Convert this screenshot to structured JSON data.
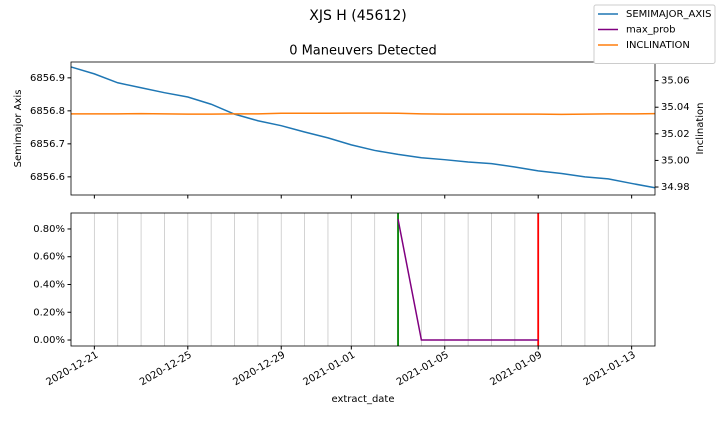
{
  "title": "XJS H (45612)",
  "chart_data": [
    {
      "type": "line",
      "title": "0 Maneuvers Detected",
      "ylabel": "Semimajor Axis",
      "y2label": "Inclination",
      "x": [
        "2020-12-20",
        "2020-12-21",
        "2020-12-22",
        "2020-12-23",
        "2020-12-24",
        "2020-12-25",
        "2020-12-26",
        "2020-12-27",
        "2020-12-28",
        "2020-12-29",
        "2020-12-30",
        "2020-12-31",
        "2021-01-01",
        "2021-01-02",
        "2021-01-03",
        "2021-01-04",
        "2021-01-05",
        "2021-01-06",
        "2021-01-07",
        "2021-01-08",
        "2021-01-09",
        "2021-01-10",
        "2021-01-11",
        "2021-01-12",
        "2021-01-13",
        "2021-01-14"
      ],
      "series": [
        {
          "name": "SEMIMAJOR_AXIS",
          "color": "#1f77b4",
          "values": [
            6856.933,
            6856.912,
            6856.885,
            6856.87,
            6856.855,
            6856.842,
            6856.82,
            6856.79,
            6856.77,
            6856.755,
            6856.736,
            6856.718,
            6856.697,
            6856.68,
            6856.668,
            6856.658,
            6856.652,
            6856.645,
            6856.64,
            6856.63,
            6856.618,
            6856.61,
            6856.6,
            6856.594,
            6856.58,
            6856.567
          ]
        },
        {
          "name": "INCLINATION",
          "color": "#ff7f0e",
          "axis": "y2",
          "values": [
            35.035,
            35.035,
            35.035,
            35.0352,
            35.035,
            35.0348,
            35.0348,
            35.035,
            35.035,
            35.0355,
            35.0355,
            35.0355,
            35.0356,
            35.0356,
            35.0355,
            35.035,
            35.0348,
            35.0348,
            35.0348,
            35.0348,
            35.0348,
            35.0346,
            35.0348,
            35.035,
            35.035,
            35.0352
          ]
        }
      ],
      "xlim": [
        "2020-12-20",
        "2021-01-14"
      ],
      "xticks": [
        "2020-12-21",
        "2020-12-25",
        "2020-12-29",
        "2021-01-01",
        "2021-01-05",
        "2021-01-09",
        "2021-01-13"
      ],
      "ylim": [
        6856.545,
        6856.948
      ],
      "yticks": [
        6856.6,
        6856.7,
        6856.8,
        6856.9
      ],
      "y2lim": [
        34.974,
        35.074
      ],
      "y2ticks": [
        34.98,
        {
          "value": 35,
          "label": "35.00"
        },
        35.02,
        35.04,
        35.06
      ]
    },
    {
      "type": "line",
      "xlabel": "extract_date",
      "x": [
        "2021-01-03",
        "2021-01-04",
        "2021-01-05",
        "2021-01-06",
        "2021-01-07",
        "2021-01-08",
        "2021-01-09"
      ],
      "series": [
        {
          "name": "max_prob",
          "color": "#800080",
          "values": [
            0.87,
            0,
            0,
            0,
            0,
            0,
            0
          ]
        }
      ],
      "vlines": [
        {
          "color": "#c8c8c8",
          "x": [
            "2020-12-20",
            "2020-12-21",
            "2020-12-22",
            "2020-12-23",
            "2020-12-24",
            "2020-12-25",
            "2020-12-26",
            "2020-12-27",
            "2020-12-28",
            "2020-12-29",
            "2020-12-30",
            "2020-12-31",
            "2021-01-01",
            "2021-01-02",
            "2021-01-04",
            "2021-01-05",
            "2021-01-06",
            "2021-01-07",
            "2021-01-08",
            "2021-01-10",
            "2021-01-11",
            "2021-01-12",
            "2021-01-13"
          ]
        },
        {
          "color": "#008000",
          "x": [
            "2021-01-03"
          ]
        },
        {
          "color": "#ff0000",
          "x": [
            "2021-01-09"
          ]
        }
      ],
      "xlim": [
        "2020-12-20",
        "2021-01-14"
      ],
      "xticks": [
        "2020-12-21",
        "2020-12-25",
        "2020-12-29",
        "2021-01-01",
        "2021-01-05",
        "2021-01-09",
        "2021-01-13"
      ],
      "ylim": [
        -0.043,
        0.915
      ],
      "yticks": [
        {
          "value": 0,
          "label": "0.00%"
        },
        {
          "value": 0.2,
          "label": "0.20%"
        },
        {
          "value": 0.4,
          "label": "0.40%"
        },
        {
          "value": 0.6,
          "label": "0.60%"
        },
        {
          "value": 0.8,
          "label": "0.80%"
        }
      ]
    }
  ]
}
